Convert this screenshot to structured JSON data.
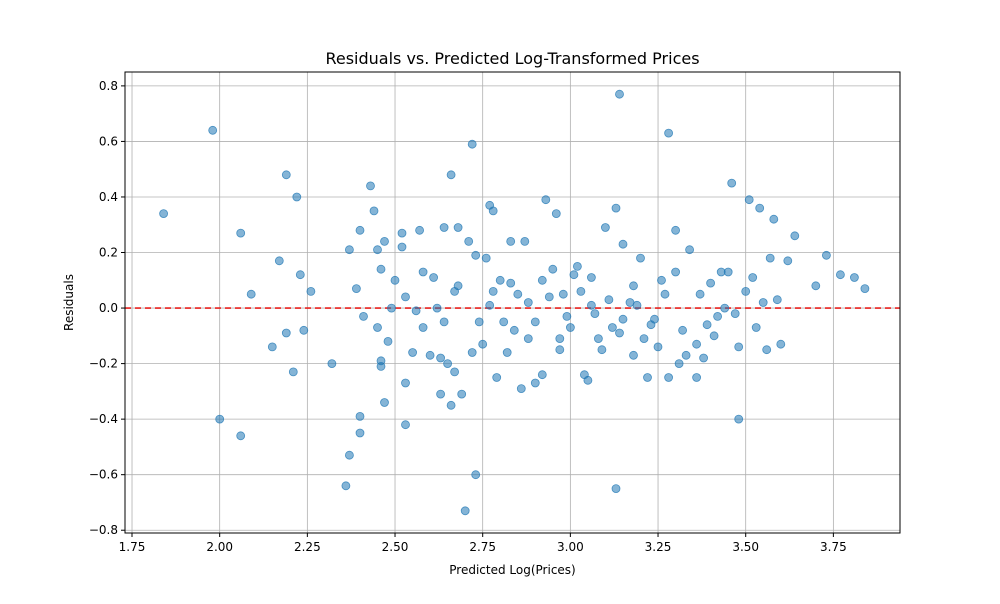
{
  "chart_data": {
    "type": "scatter",
    "title": "Residuals vs. Predicted Log-Transformed Prices",
    "xlabel": "Predicted Log(Prices)",
    "ylabel": "Residuals",
    "xlim": [
      1.73,
      3.94
    ],
    "ylim": [
      -0.81,
      0.85
    ],
    "xticks": [
      1.75,
      2.0,
      2.25,
      2.5,
      2.75,
      3.0,
      3.25,
      3.5,
      3.75
    ],
    "xtick_labels": [
      "1.75",
      "2.00",
      "2.25",
      "2.50",
      "2.75",
      "3.00",
      "3.25",
      "3.50",
      "3.75"
    ],
    "yticks": [
      -0.8,
      -0.6,
      -0.4,
      -0.2,
      0.0,
      0.2,
      0.4,
      0.6,
      0.8
    ],
    "ytick_labels": [
      "−0.8",
      "−0.6",
      "−0.4",
      "−0.2",
      "0.0",
      "0.2",
      "0.4",
      "0.6",
      "0.8"
    ],
    "grid": true,
    "reference_line": {
      "y": 0.0,
      "style": "dashed",
      "color": "#e8211f"
    },
    "marker_color": "#1f77b4",
    "marker_alpha": 0.55,
    "points": [
      [
        1.84,
        0.34
      ],
      [
        1.98,
        0.64
      ],
      [
        2.0,
        -0.4
      ],
      [
        2.06,
        0.27
      ],
      [
        2.06,
        -0.46
      ],
      [
        2.09,
        0.05
      ],
      [
        2.15,
        -0.14
      ],
      [
        2.17,
        0.17
      ],
      [
        2.19,
        0.48
      ],
      [
        2.19,
        -0.09
      ],
      [
        2.21,
        -0.23
      ],
      [
        2.22,
        0.4
      ],
      [
        2.23,
        0.12
      ],
      [
        2.24,
        -0.08
      ],
      [
        2.26,
        0.06
      ],
      [
        2.32,
        -0.2
      ],
      [
        2.36,
        -0.64
      ],
      [
        2.37,
        -0.53
      ],
      [
        2.37,
        0.21
      ],
      [
        2.39,
        0.07
      ],
      [
        2.4,
        -0.45
      ],
      [
        2.4,
        -0.39
      ],
      [
        2.4,
        0.28
      ],
      [
        2.41,
        -0.03
      ],
      [
        2.43,
        0.44
      ],
      [
        2.44,
        0.35
      ],
      [
        2.45,
        -0.07
      ],
      [
        2.45,
        0.21
      ],
      [
        2.46,
        -0.19
      ],
      [
        2.46,
        -0.21
      ],
      [
        2.46,
        0.14
      ],
      [
        2.47,
        -0.34
      ],
      [
        2.47,
        0.24
      ],
      [
        2.48,
        -0.12
      ],
      [
        2.49,
        0.0
      ],
      [
        2.5,
        0.1
      ],
      [
        2.52,
        0.22
      ],
      [
        2.52,
        0.27
      ],
      [
        2.53,
        -0.42
      ],
      [
        2.53,
        -0.27
      ],
      [
        2.53,
        0.04
      ],
      [
        2.55,
        -0.16
      ],
      [
        2.56,
        -0.01
      ],
      [
        2.57,
        0.28
      ],
      [
        2.58,
        -0.07
      ],
      [
        2.58,
        0.13
      ],
      [
        2.6,
        -0.17
      ],
      [
        2.61,
        0.11
      ],
      [
        2.63,
        -0.31
      ],
      [
        2.63,
        -0.18
      ],
      [
        2.64,
        0.29
      ],
      [
        2.64,
        -0.05
      ],
      [
        2.65,
        -0.2
      ],
      [
        2.66,
        0.48
      ],
      [
        2.66,
        -0.35
      ],
      [
        2.67,
        0.06
      ],
      [
        2.67,
        -0.23
      ],
      [
        2.68,
        0.29
      ],
      [
        2.69,
        -0.31
      ],
      [
        2.7,
        -0.73
      ],
      [
        2.71,
        0.24
      ],
      [
        2.72,
        0.59
      ],
      [
        2.72,
        -0.16
      ],
      [
        2.73,
        -0.6
      ],
      [
        2.73,
        0.19
      ],
      [
        2.76,
        0.18
      ],
      [
        2.77,
        0.37
      ],
      [
        2.78,
        0.35
      ],
      [
        2.78,
        0.06
      ],
      [
        2.79,
        -0.25
      ],
      [
        2.8,
        0.1
      ],
      [
        2.82,
        -0.16
      ],
      [
        2.83,
        0.24
      ],
      [
        2.84,
        -0.08
      ],
      [
        2.86,
        -0.29
      ],
      [
        2.87,
        0.24
      ],
      [
        2.88,
        0.02
      ],
      [
        2.9,
        -0.27
      ],
      [
        2.92,
        -0.24
      ],
      [
        2.93,
        0.39
      ],
      [
        2.95,
        0.14
      ],
      [
        2.96,
        0.34
      ],
      [
        2.97,
        -0.15
      ],
      [
        2.98,
        0.05
      ],
      [
        3.0,
        -0.07
      ],
      [
        3.02,
        0.15
      ],
      [
        3.04,
        -0.24
      ],
      [
        3.05,
        -0.26
      ],
      [
        3.06,
        0.11
      ],
      [
        3.08,
        -0.11
      ],
      [
        3.1,
        0.29
      ],
      [
        3.12,
        -0.07
      ],
      [
        3.13,
        0.36
      ],
      [
        3.13,
        -0.65
      ],
      [
        3.14,
        0.77
      ],
      [
        3.15,
        0.23
      ],
      [
        3.17,
        0.02
      ],
      [
        3.18,
        -0.17
      ],
      [
        3.2,
        0.18
      ],
      [
        3.22,
        -0.25
      ],
      [
        3.24,
        -0.04
      ],
      [
        3.26,
        0.1
      ],
      [
        3.28,
        0.63
      ],
      [
        3.28,
        -0.25
      ],
      [
        3.3,
        0.28
      ],
      [
        3.31,
        -0.2
      ],
      [
        3.34,
        0.21
      ],
      [
        3.36,
        -0.25
      ],
      [
        3.38,
        -0.18
      ],
      [
        3.4,
        0.09
      ],
      [
        3.42,
        -0.03
      ],
      [
        3.44,
        0.0
      ],
      [
        3.46,
        0.45
      ],
      [
        3.48,
        -0.14
      ],
      [
        3.48,
        -0.4
      ],
      [
        3.5,
        0.06
      ],
      [
        3.51,
        0.39
      ],
      [
        3.53,
        -0.07
      ],
      [
        3.54,
        0.36
      ],
      [
        3.56,
        -0.15
      ],
      [
        3.57,
        0.18
      ],
      [
        3.58,
        0.32
      ],
      [
        3.59,
        0.03
      ],
      [
        3.6,
        -0.13
      ],
      [
        3.62,
        0.17
      ],
      [
        3.64,
        0.26
      ],
      [
        3.7,
        0.08
      ],
      [
        3.73,
        0.19
      ],
      [
        3.77,
        0.12
      ],
      [
        3.81,
        0.11
      ],
      [
        3.84,
        0.07
      ],
      [
        2.81,
        -0.05
      ],
      [
        2.85,
        0.05
      ],
      [
        2.9,
        -0.05
      ],
      [
        2.94,
        0.04
      ],
      [
        2.99,
        -0.03
      ],
      [
        3.03,
        0.06
      ],
      [
        3.07,
        -0.02
      ],
      [
        3.11,
        0.03
      ],
      [
        3.15,
        -0.04
      ],
      [
        3.19,
        0.01
      ],
      [
        3.23,
        -0.06
      ],
      [
        3.27,
        0.05
      ],
      [
        3.32,
        -0.08
      ],
      [
        3.36,
        -0.13
      ],
      [
        3.39,
        -0.06
      ],
      [
        3.45,
        0.13
      ],
      [
        3.52,
        0.11
      ],
      [
        2.74,
        -0.05
      ],
      [
        2.77,
        0.01
      ],
      [
        2.83,
        0.09
      ],
      [
        2.88,
        -0.11
      ],
      [
        2.92,
        0.1
      ],
      [
        2.97,
        -0.11
      ],
      [
        3.01,
        0.12
      ],
      [
        3.06,
        0.01
      ],
      [
        3.09,
        -0.15
      ],
      [
        3.14,
        -0.09
      ],
      [
        3.18,
        0.08
      ],
      [
        3.21,
        -0.11
      ],
      [
        3.25,
        -0.14
      ],
      [
        3.3,
        0.13
      ],
      [
        3.33,
        -0.17
      ],
      [
        3.37,
        0.05
      ],
      [
        3.41,
        -0.1
      ],
      [
        3.43,
        0.13
      ],
      [
        3.47,
        -0.02
      ],
      [
        3.55,
        0.02
      ],
      [
        2.62,
        0.0
      ],
      [
        2.68,
        0.08
      ],
      [
        2.75,
        -0.13
      ]
    ]
  }
}
